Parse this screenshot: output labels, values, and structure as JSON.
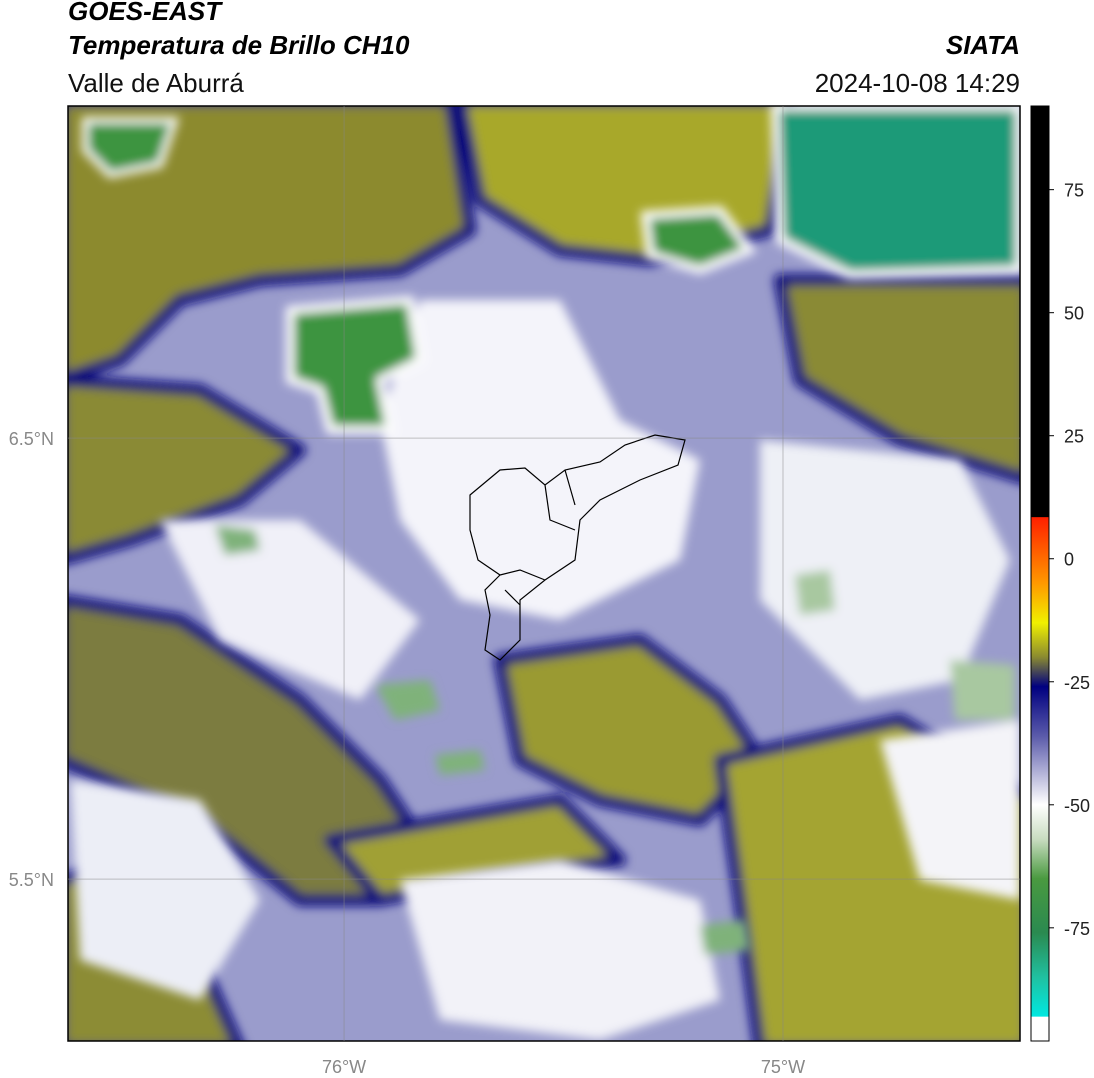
{
  "header": {
    "satellite": "GOES-EAST",
    "product": "Temperatura de Brillo CH10",
    "region": "Valle de Aburrá",
    "source": "SIATA",
    "datetime": "2024-10-08 14:29"
  },
  "map": {
    "lon_range": [
      -76.629,
      -74.46
    ],
    "lat_range": [
      5.133,
      7.253
    ],
    "lat_ticks": [
      {
        "value": 6.5,
        "label": "6.5°N"
      },
      {
        "value": 5.5,
        "label": "5.5°N"
      }
    ],
    "lon_ticks": [
      {
        "value": -76,
        "label": "76°W"
      },
      {
        "value": -75,
        "label": "75°W"
      }
    ]
  },
  "colorbar": {
    "range": [
      -98,
      92
    ],
    "ticks": [
      75,
      50,
      25,
      0,
      -25,
      -50,
      -75
    ],
    "stops": [
      {
        "value": 92,
        "color": "#000000"
      },
      {
        "value": 8.5,
        "color": "#000000"
      },
      {
        "value": 8.4,
        "color": "#ff2000"
      },
      {
        "value": -5,
        "color": "#ff9900"
      },
      {
        "value": -13,
        "color": "#f0f000"
      },
      {
        "value": -20,
        "color": "#8a8a30"
      },
      {
        "value": -26,
        "color": "#000080"
      },
      {
        "value": -36,
        "color": "#5a5aaa"
      },
      {
        "value": -50,
        "color": "#ffffff"
      },
      {
        "value": -57,
        "color": "#c8dcc0"
      },
      {
        "value": -65,
        "color": "#4a9a40"
      },
      {
        "value": -76,
        "color": "#2a8a50"
      },
      {
        "value": -85,
        "color": "#20c0a0"
      },
      {
        "value": -93,
        "color": "#00e8e0"
      },
      {
        "value": -93.1,
        "color": "#ffffff"
      },
      {
        "value": -98,
        "color": "#ffffff"
      }
    ]
  }
}
